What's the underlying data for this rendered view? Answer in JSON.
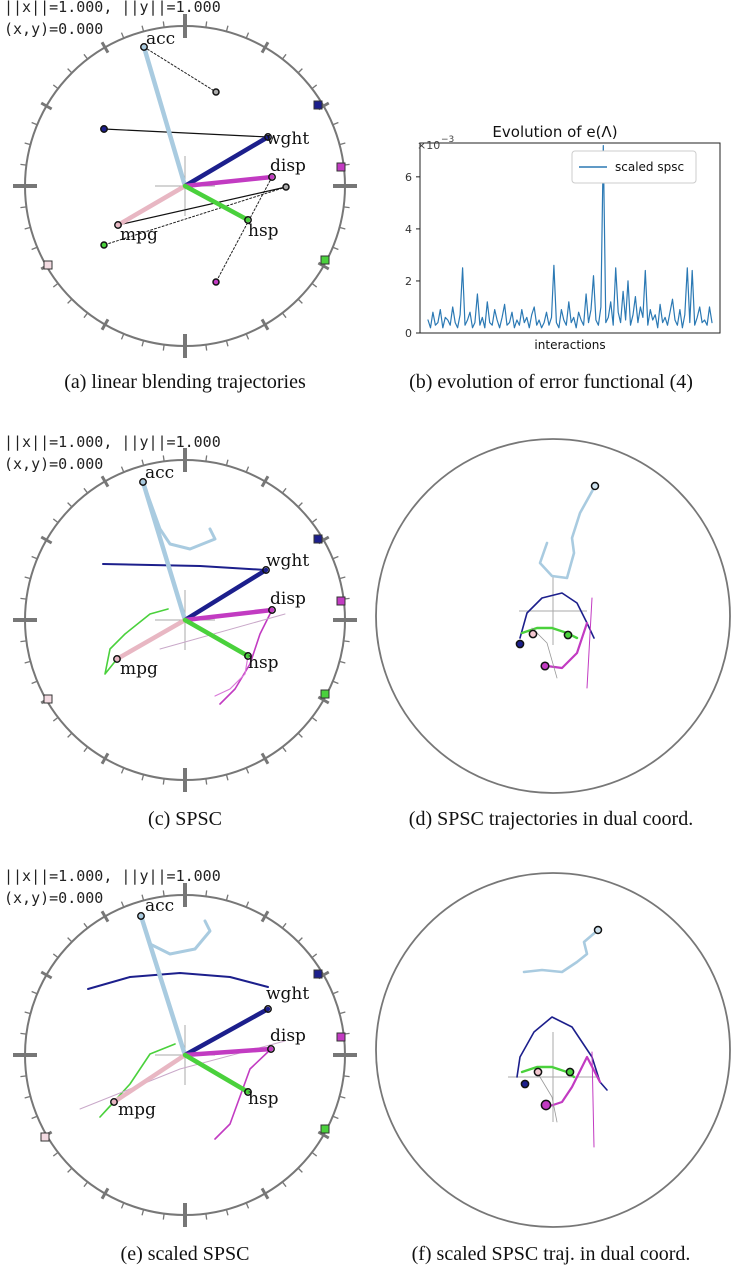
{
  "readouts": {
    "norms": "||x||=1.000, ||y||=1.000",
    "origin": "(x,y)=0.000"
  },
  "captions": {
    "a": "(a) linear blending trajectories",
    "b": "(b) evolution of error functional (4)",
    "c": "(c) SPSC",
    "d": "(d) SPSC trajectories in dual coord.",
    "e": "(e) scaled SPSC",
    "f": "(f) scaled SPSC traj. in dual coord."
  },
  "variables": [
    "acc",
    "wght",
    "disp",
    "mpg",
    "hsp"
  ],
  "colors": {
    "acc": "#a9cbe0",
    "wght": "#1c1f8c",
    "disp": "#c23bc2",
    "mpg": "#e8b7c3",
    "hsp": "#4ad13c",
    "axis_ring": "#777777",
    "series_line": "#2b79b4"
  },
  "chart_data": {
    "type": "line",
    "title": "Evolution of e(Λ)",
    "scale_note": "×10",
    "scale_exponent": "−3",
    "xlabel": "interactions",
    "ylabel": "",
    "ylim": [
      0,
      7.3
    ],
    "yticks": [
      "0",
      "2",
      "4",
      "6"
    ],
    "grid": false,
    "legend_position": "top-right",
    "series": [
      {
        "name": "scaled spsc",
        "values": [
          0.5,
          0.2,
          0.8,
          0.3,
          0.4,
          0.9,
          0.2,
          0.6,
          0.5,
          0.3,
          1.0,
          0.4,
          0.2,
          0.7,
          2.5,
          0.3,
          0.5,
          0.8,
          0.2,
          0.4,
          1.5,
          0.3,
          0.6,
          0.2,
          1.2,
          0.4,
          0.3,
          0.9,
          0.5,
          0.2,
          0.6,
          1.1,
          0.3,
          0.4,
          0.8,
          0.2,
          0.5,
          0.3,
          0.9,
          0.4,
          0.6,
          0.2,
          0.7,
          1.0,
          0.3,
          0.5,
          0.2,
          0.4,
          0.8,
          0.3,
          0.6,
          2.6,
          0.4,
          0.2,
          0.9,
          0.5,
          0.3,
          1.2,
          0.4,
          0.6,
          0.2,
          0.8,
          0.5,
          0.3,
          1.5,
          0.4,
          0.9,
          2.2,
          0.5,
          0.3,
          1.0,
          7.2,
          0.4,
          0.6,
          1.2,
          0.3,
          2.5,
          0.8,
          0.4,
          1.6,
          0.5,
          2.0,
          0.3,
          0.7,
          1.4,
          0.4,
          1.0,
          0.6,
          2.4,
          0.3,
          0.9,
          0.5,
          0.7,
          0.2,
          1.1,
          0.4,
          0.6,
          0.3,
          0.8,
          1.3,
          0.5,
          0.3,
          0.9,
          0.2,
          0.7,
          2.5,
          0.4,
          2.4,
          0.3,
          0.6,
          1.0,
          0.4,
          0.5,
          0.3,
          1.0,
          0.4
        ]
      }
    ]
  }
}
